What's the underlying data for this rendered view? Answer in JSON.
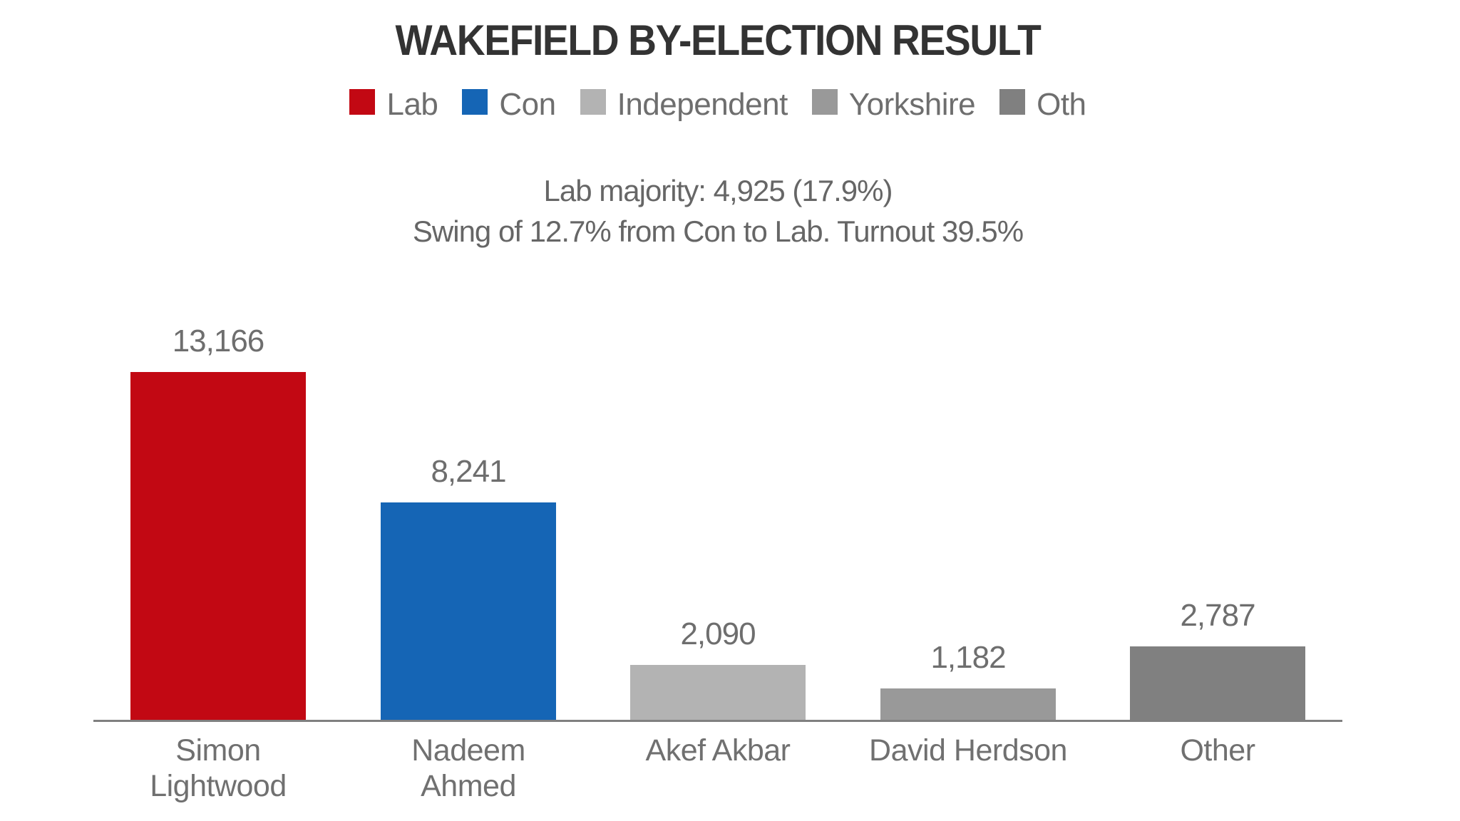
{
  "chart_data": {
    "type": "bar",
    "title": "WAKEFIELD BY-ELECTION RESULT",
    "subtitle": [
      "Lab majority: 4,925 (17.9%)",
      "Swing of 12.7% from Con to Lab. Turnout 39.5%"
    ],
    "legend": [
      {
        "label": "Lab",
        "color": "#c20813"
      },
      {
        "label": "Con",
        "color": "#1565b5"
      },
      {
        "label": "Independent",
        "color": "#b3b3b3"
      },
      {
        "label": "Yorkshire",
        "color": "#999999"
      },
      {
        "label": "Oth",
        "color": "#808080"
      }
    ],
    "legend_position": "top",
    "categories": [
      "Simon Lightwood",
      "Nadeem Ahmed",
      "Akef Akbar",
      "David Herdson",
      "Other"
    ],
    "category_lines": [
      [
        "Simon",
        "Lightwood"
      ],
      [
        "Nadeem",
        "Ahmed"
      ],
      [
        "Akef Akbar"
      ],
      [
        "David Herdson"
      ],
      [
        "Other"
      ]
    ],
    "values": [
      13166,
      8241,
      2090,
      1182,
      2787
    ],
    "value_labels": [
      "13,166",
      "8,241",
      "2,090",
      "1,182",
      "2,787"
    ],
    "parties": [
      "Lab",
      "Con",
      "Independent",
      "Yorkshire",
      "Oth"
    ],
    "colors": [
      "#c20813",
      "#1565b5",
      "#b3b3b3",
      "#999999",
      "#808080"
    ],
    "xlabel": "",
    "ylabel": "",
    "ylim": [
      0,
      13166
    ],
    "grid": false,
    "y_axis_visible": false
  }
}
